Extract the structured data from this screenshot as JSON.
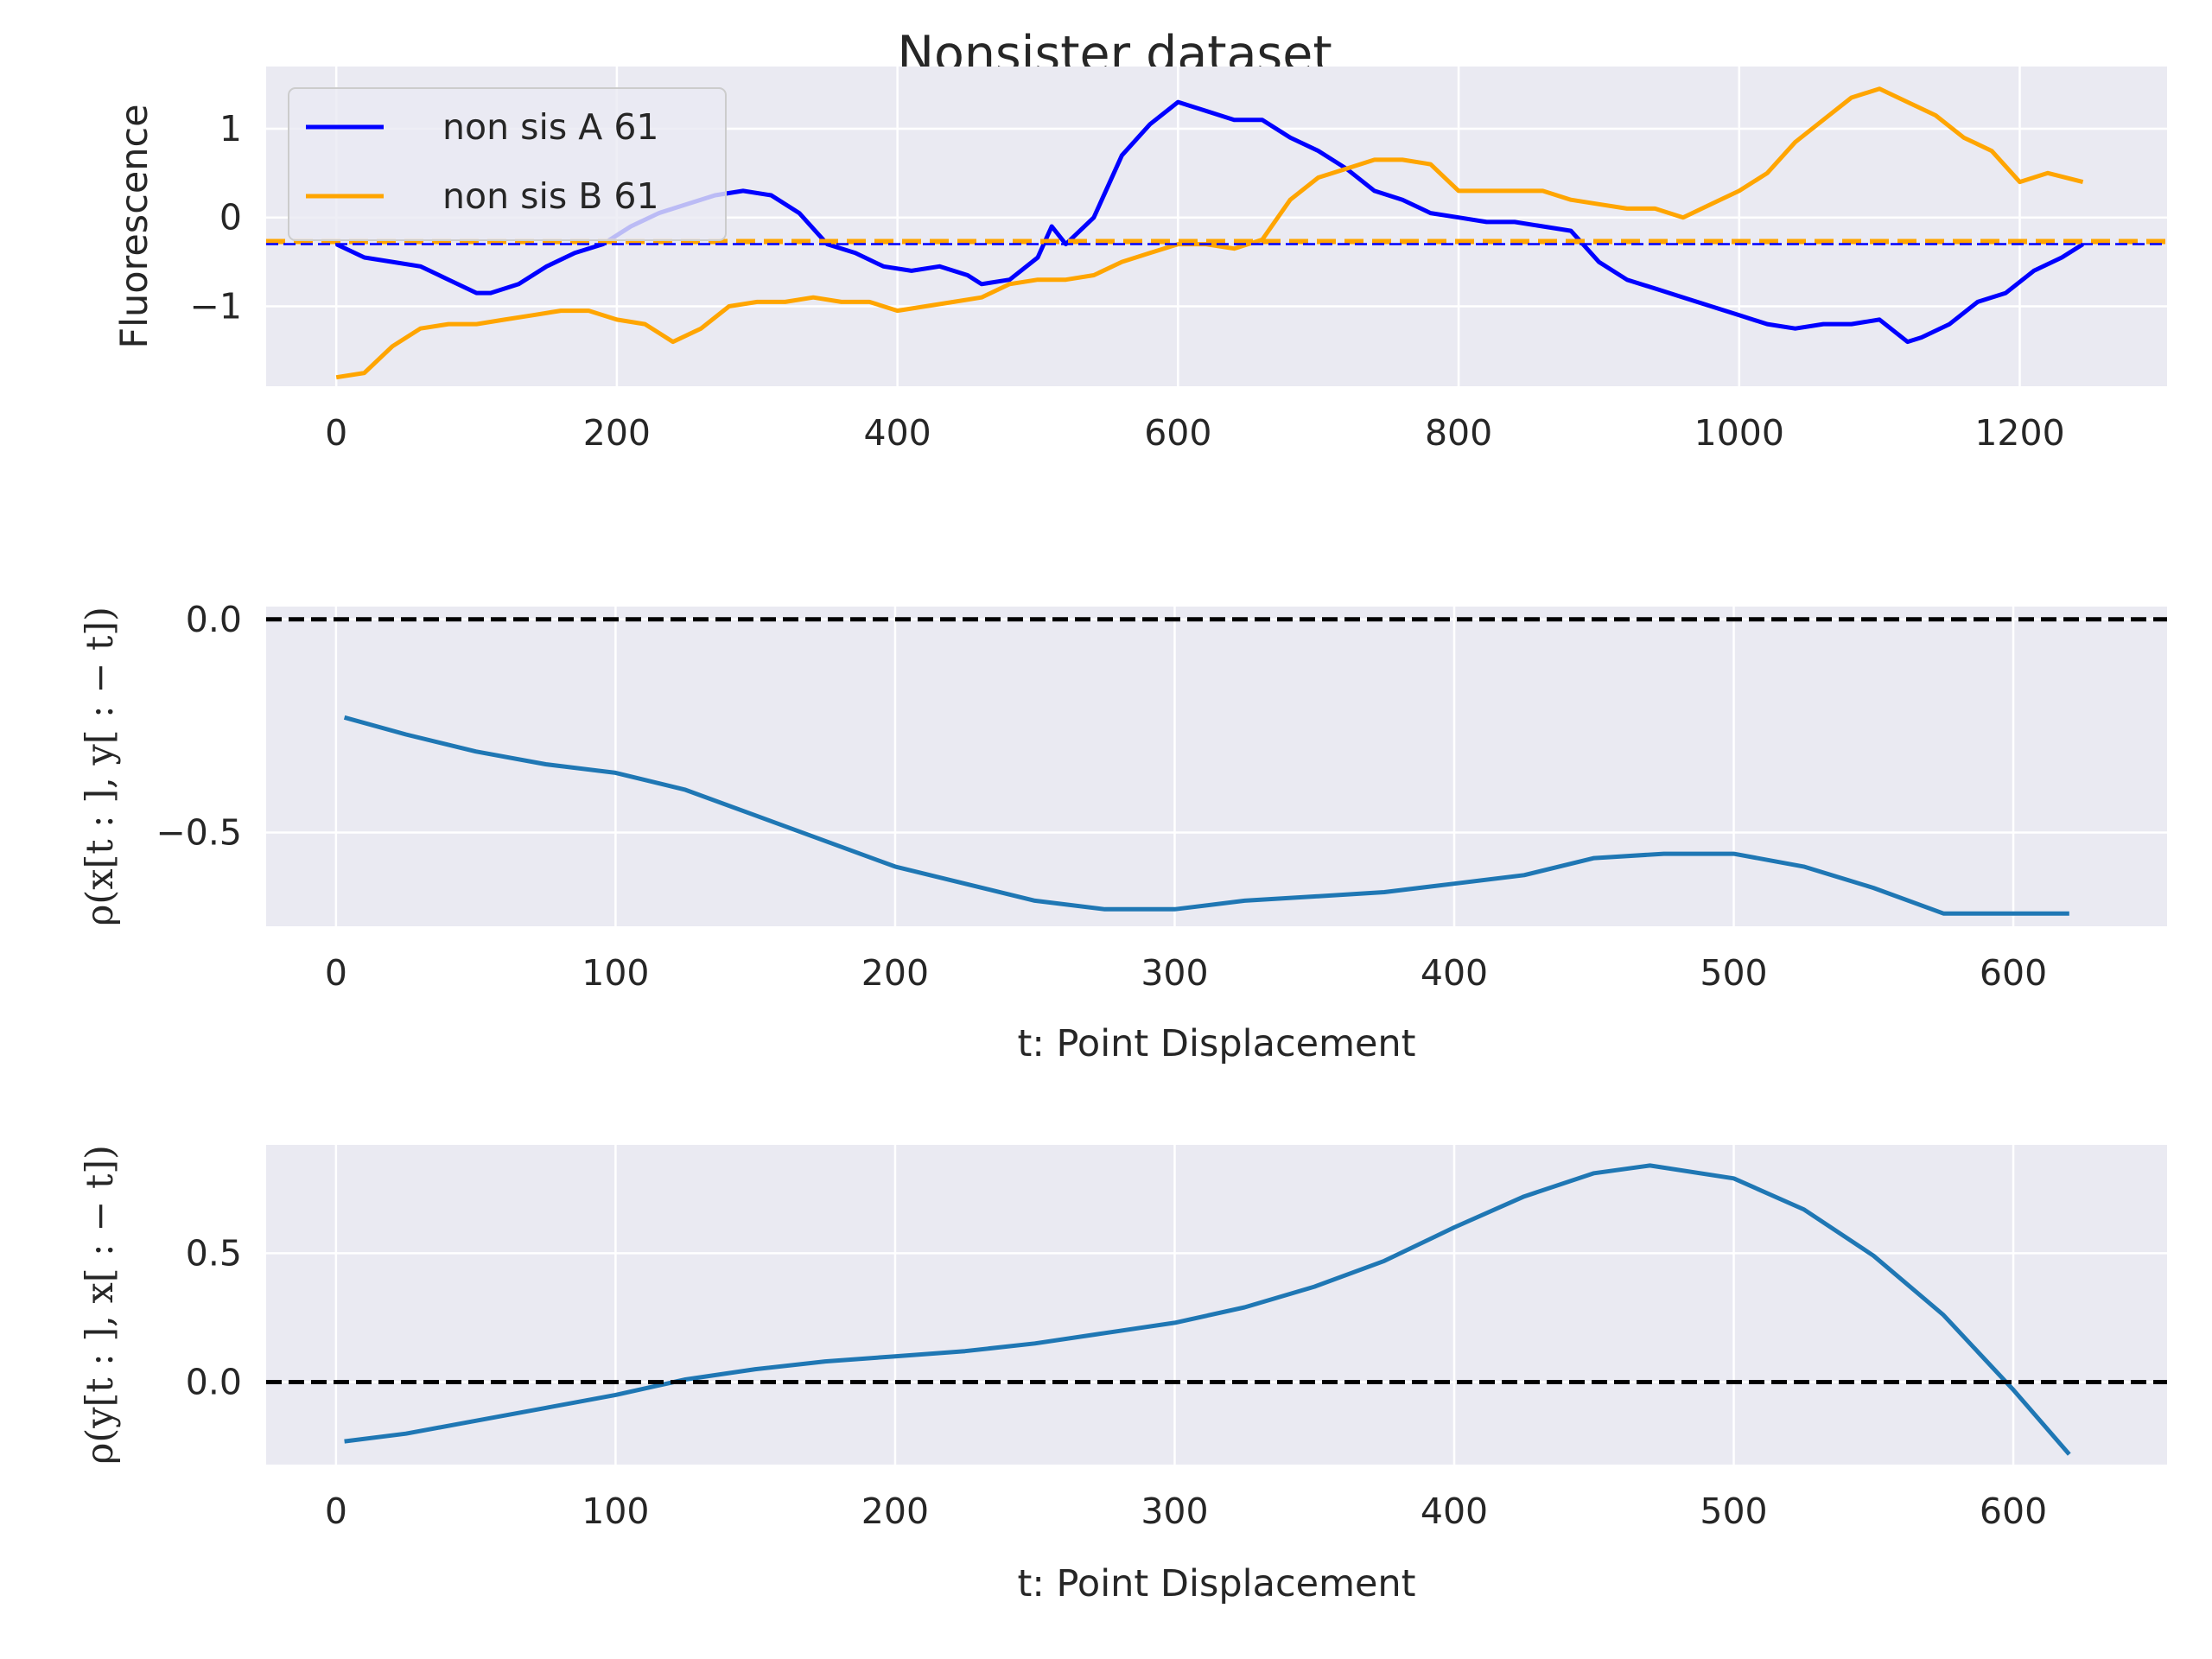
{
  "figure": {
    "title": "Nonsister dataset"
  },
  "chart_data": [
    {
      "type": "line",
      "ylabel": "Fluorescence",
      "xlabel": "",
      "xlim": [
        -50,
        1305
      ],
      "ylim": [
        -1.9,
        1.7
      ],
      "xticks": [
        0,
        200,
        400,
        600,
        800,
        1000,
        1200
      ],
      "xtick_labels": [
        "0",
        "200",
        "400",
        "600",
        "800",
        "1000",
        "1200"
      ],
      "yticks": [
        1,
        0,
        -1
      ],
      "ytick_labels": [
        "1",
        "0",
        "−1"
      ],
      "grid": true,
      "legend": {
        "placement": "top-left",
        "entries": [
          "non sis A 61",
          "non sis B 61"
        ]
      },
      "series": [
        {
          "name": "non sis A 61",
          "color": "#0000ff",
          "x": [
            0,
            20,
            40,
            60,
            80,
            100,
            110,
            130,
            150,
            170,
            190,
            210,
            230,
            250,
            270,
            290,
            310,
            330,
            350,
            370,
            390,
            410,
            430,
            450,
            460,
            480,
            500,
            510,
            520,
            540,
            560,
            580,
            600,
            620,
            640,
            660,
            680,
            700,
            720,
            740,
            760,
            780,
            800,
            820,
            840,
            860,
            880,
            900,
            920,
            940,
            960,
            980,
            1000,
            1020,
            1040,
            1060,
            1080,
            1100,
            1120,
            1130,
            1150,
            1170,
            1190,
            1210,
            1230,
            1245
          ],
          "y": [
            -0.3,
            -0.45,
            -0.5,
            -0.55,
            -0.7,
            -0.85,
            -0.85,
            -0.75,
            -0.55,
            -0.4,
            -0.3,
            -0.1,
            0.05,
            0.15,
            0.25,
            0.3,
            0.25,
            0.05,
            -0.3,
            -0.4,
            -0.55,
            -0.6,
            -0.55,
            -0.65,
            -0.75,
            -0.7,
            -0.45,
            -0.1,
            -0.3,
            0.0,
            0.7,
            1.05,
            1.3,
            1.2,
            1.1,
            1.1,
            0.9,
            0.75,
            0.55,
            0.3,
            0.2,
            0.05,
            0.0,
            -0.05,
            -0.05,
            -0.1,
            -0.15,
            -0.5,
            -0.7,
            -0.8,
            -0.9,
            -1.0,
            -1.1,
            -1.2,
            -1.25,
            -1.2,
            -1.2,
            -1.15,
            -1.4,
            -1.35,
            -1.2,
            -0.95,
            -0.85,
            -0.6,
            -0.45,
            -0.3
          ]
        },
        {
          "name": "non sis B 61",
          "color": "#ffa500",
          "x": [
            0,
            20,
            40,
            60,
            80,
            100,
            120,
            140,
            160,
            180,
            200,
            220,
            240,
            260,
            280,
            300,
            320,
            340,
            360,
            380,
            400,
            420,
            440,
            460,
            480,
            500,
            520,
            540,
            560,
            580,
            600,
            620,
            640,
            660,
            680,
            700,
            720,
            740,
            760,
            780,
            800,
            820,
            840,
            860,
            880,
            900,
            920,
            940,
            960,
            980,
            1000,
            1020,
            1040,
            1060,
            1080,
            1100,
            1120,
            1140,
            1160,
            1180,
            1200,
            1220,
            1245
          ],
          "y": [
            -1.8,
            -1.75,
            -1.45,
            -1.25,
            -1.2,
            -1.2,
            -1.15,
            -1.1,
            -1.05,
            -1.05,
            -1.15,
            -1.2,
            -1.4,
            -1.25,
            -1.0,
            -0.95,
            -0.95,
            -0.9,
            -0.95,
            -0.95,
            -1.05,
            -1.0,
            -0.95,
            -0.9,
            -0.75,
            -0.7,
            -0.7,
            -0.65,
            -0.5,
            -0.4,
            -0.3,
            -0.3,
            -0.35,
            -0.25,
            0.2,
            0.45,
            0.55,
            0.65,
            0.65,
            0.6,
            0.3,
            0.3,
            0.3,
            0.3,
            0.2,
            0.15,
            0.1,
            0.1,
            0.0,
            0.15,
            0.3,
            0.5,
            0.85,
            1.1,
            1.35,
            1.45,
            1.3,
            1.15,
            0.9,
            0.75,
            0.4,
            0.5,
            0.4
          ]
        }
      ],
      "reference_lines": [
        {
          "y": -0.27,
          "color": "#ffa500",
          "style": "dashed"
        },
        {
          "y": -0.3,
          "color": "#0000ff",
          "style": "dashed"
        }
      ]
    },
    {
      "type": "line",
      "xlabel": "t: Point Displacement",
      "ylabel": "ρ(x[t : ], y[ : − t])",
      "xlim": [
        -25,
        655
      ],
      "ylim": [
        -0.72,
        0.03
      ],
      "xticks": [
        0,
        100,
        200,
        300,
        400,
        500,
        600
      ],
      "xtick_labels": [
        "0",
        "100",
        "200",
        "300",
        "400",
        "500",
        "600"
      ],
      "yticks": [
        0.0,
        -0.5
      ],
      "ytick_labels": [
        "0.0",
        "−0.5"
      ],
      "grid": true,
      "series": [
        {
          "color": "#1f77b4",
          "x": [
            3,
            25,
            50,
            75,
            100,
            125,
            150,
            175,
            200,
            225,
            250,
            275,
            300,
            325,
            350,
            375,
            400,
            425,
            450,
            475,
            500,
            525,
            550,
            575,
            600,
            620
          ],
          "y": [
            -0.23,
            -0.27,
            -0.31,
            -0.34,
            -0.36,
            -0.4,
            -0.46,
            -0.52,
            -0.58,
            -0.62,
            -0.66,
            -0.68,
            -0.68,
            -0.66,
            -0.65,
            -0.64,
            -0.62,
            -0.6,
            -0.56,
            -0.55,
            -0.55,
            -0.58,
            -0.63,
            -0.69,
            -0.69,
            -0.69
          ]
        }
      ],
      "reference_lines": [
        {
          "y": 0.0,
          "color": "#000000",
          "style": "dashed"
        }
      ]
    },
    {
      "type": "line",
      "xlabel": "t: Point Displacement",
      "ylabel": "ρ(y[t : ], x[ : − t])",
      "xlim": [
        -25,
        655
      ],
      "ylim": [
        -0.32,
        0.92
      ],
      "xticks": [
        0,
        100,
        200,
        300,
        400,
        500,
        600
      ],
      "xtick_labels": [
        "0",
        "100",
        "200",
        "300",
        "400",
        "500",
        "600"
      ],
      "yticks": [
        0.5,
        0.0
      ],
      "ytick_labels": [
        "0.5",
        "0.0"
      ],
      "grid": true,
      "series": [
        {
          "color": "#1f77b4",
          "x": [
            3,
            25,
            50,
            75,
            100,
            125,
            150,
            175,
            200,
            225,
            250,
            275,
            300,
            325,
            350,
            375,
            400,
            425,
            450,
            470,
            500,
            525,
            550,
            575,
            600,
            620
          ],
          "y": [
            -0.23,
            -0.2,
            -0.15,
            -0.1,
            -0.05,
            0.01,
            0.05,
            0.08,
            0.1,
            0.12,
            0.15,
            0.19,
            0.23,
            0.29,
            0.37,
            0.47,
            0.6,
            0.72,
            0.81,
            0.84,
            0.79,
            0.67,
            0.49,
            0.26,
            -0.03,
            -0.28
          ]
        }
      ],
      "reference_lines": [
        {
          "y": 0.0,
          "color": "#000000",
          "style": "dashed"
        }
      ]
    }
  ]
}
